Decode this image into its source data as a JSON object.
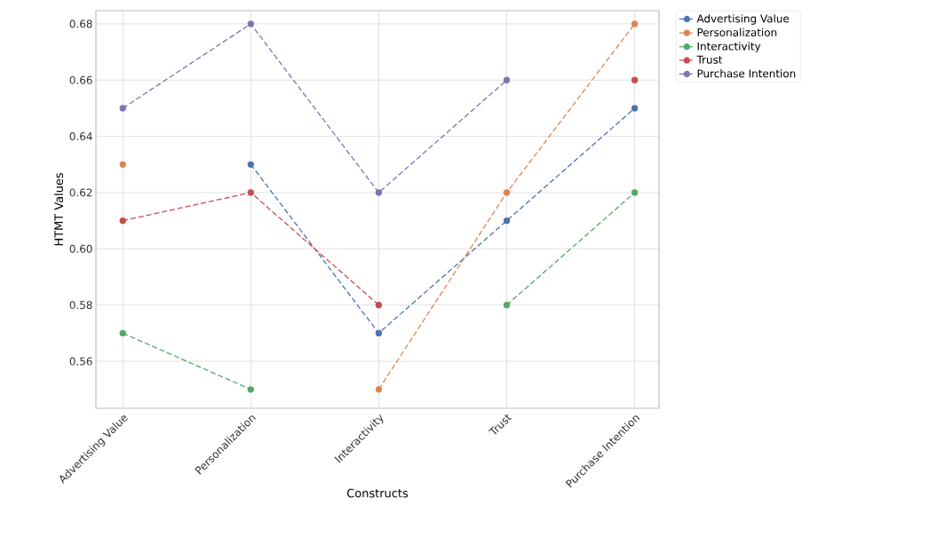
{
  "chart_data": {
    "type": "line",
    "xlabel": "Constructs",
    "ylabel": "HTMT Values",
    "categories": [
      "Advertising Value",
      "Personalization",
      "Interactivity",
      "Trust",
      "Purchase Intention"
    ],
    "series": [
      {
        "name": "Advertising Value",
        "color": "#4c72b0",
        "values": [
          null,
          0.63,
          0.57,
          0.61,
          0.65
        ]
      },
      {
        "name": "Personalization",
        "color": "#dd8452",
        "values": [
          0.63,
          null,
          0.55,
          0.62,
          0.68
        ]
      },
      {
        "name": "Interactivity",
        "color": "#55a868",
        "values": [
          0.57,
          0.55,
          null,
          0.58,
          0.62
        ]
      },
      {
        "name": "Trust",
        "color": "#c44e52",
        "values": [
          0.61,
          0.62,
          0.58,
          null,
          0.66
        ]
      },
      {
        "name": "Purchase Intention",
        "color": "#8172b3",
        "values": [
          0.65,
          0.68,
          0.62,
          0.66,
          null
        ]
      }
    ],
    "ylim": [
      0.5433,
      0.6847
    ],
    "yticks": [
      0.56,
      0.58,
      {
        "value": 0.6,
        "label": "0.60"
      },
      0.62,
      0.64,
      0.66,
      0.68
    ],
    "grid": true,
    "legend": "top right",
    "marker": "circle",
    "line_style": "dashed"
  }
}
